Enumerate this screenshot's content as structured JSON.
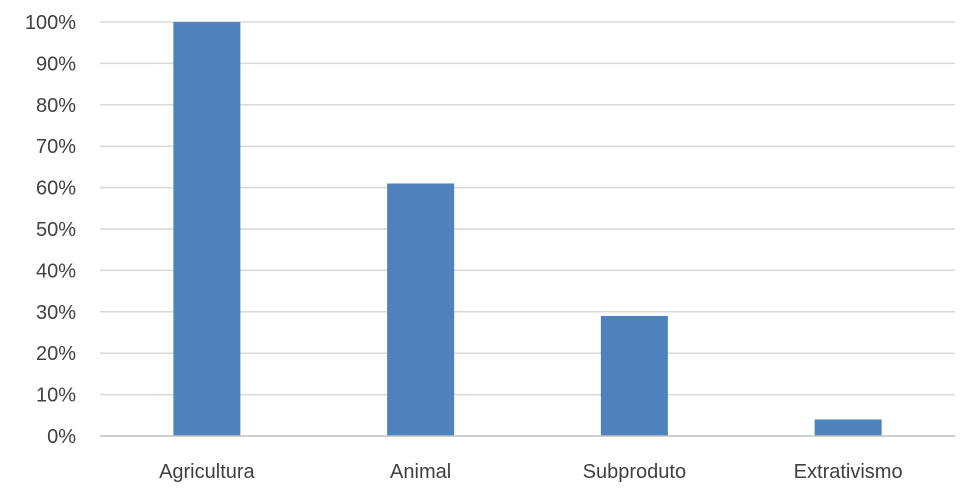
{
  "chart_data": {
    "type": "bar",
    "title": "",
    "xlabel": "",
    "ylabel": "",
    "categories": [
      "Agricultura",
      "Animal",
      "Subproduto",
      "Extrativismo"
    ],
    "values": [
      100,
      61,
      29,
      4
    ],
    "ylim": [
      0,
      100
    ],
    "yticks": [
      0,
      10,
      20,
      30,
      40,
      50,
      60,
      70,
      80,
      90,
      100
    ],
    "ytick_format": "percent",
    "grid": true,
    "legend": "none",
    "bar_color": "#4f81bd",
    "gridline_color": "#d9d9d9"
  }
}
